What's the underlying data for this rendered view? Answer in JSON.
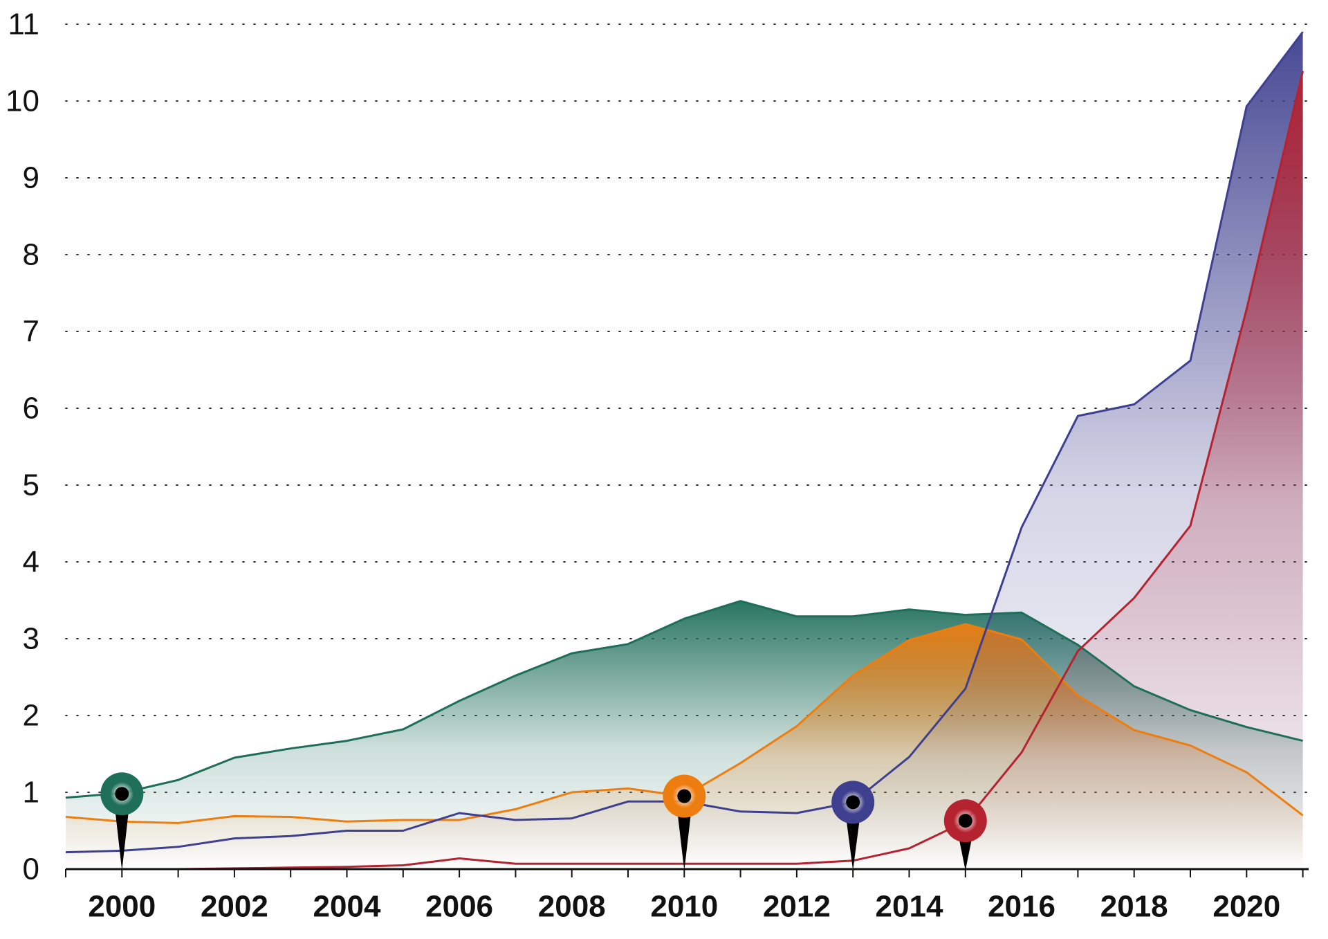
{
  "chart_data": {
    "type": "area",
    "title": "",
    "xlabel": "",
    "ylabel": "",
    "xlim": [
      1999,
      2021
    ],
    "ylim": [
      0,
      11
    ],
    "grid": "horizontal-dotted",
    "legend": "none",
    "x": [
      1999,
      2000,
      2001,
      2002,
      2003,
      2004,
      2005,
      2006,
      2007,
      2008,
      2009,
      2010,
      2011,
      2012,
      2013,
      2014,
      2015,
      2016,
      2017,
      2018,
      2019,
      2020,
      2021
    ],
    "y_ticks": [
      0,
      1,
      2,
      3,
      4,
      5,
      6,
      7,
      8,
      9,
      10,
      11
    ],
    "x_tick_labels": [
      2000,
      2002,
      2004,
      2006,
      2008,
      2010,
      2012,
      2014,
      2016,
      2018,
      2020
    ],
    "series": [
      {
        "color": "#1e6e5a",
        "values": [
          0.93,
          0.99,
          1.16,
          1.45,
          1.57,
          1.67,
          1.82,
          2.19,
          2.52,
          2.81,
          2.93,
          3.26,
          3.49,
          3.29,
          3.29,
          3.38,
          3.31,
          3.34,
          2.92,
          2.38,
          2.07,
          1.85,
          1.67
        ],
        "marker": {
          "x": 2000,
          "y": 0.98
        }
      },
      {
        "color": "#ee7d10",
        "values": [
          0.68,
          0.62,
          0.6,
          0.69,
          0.68,
          0.62,
          0.64,
          0.64,
          0.78,
          1.0,
          1.05,
          0.95,
          1.38,
          1.86,
          2.52,
          2.98,
          3.19,
          2.99,
          2.26,
          1.81,
          1.61,
          1.26,
          0.7
        ],
        "marker": {
          "x": 2010,
          "y": 0.95
        }
      },
      {
        "color": "#3e3f8e",
        "values": [
          0.22,
          0.24,
          0.29,
          0.4,
          0.43,
          0.5,
          0.5,
          0.73,
          0.64,
          0.66,
          0.88,
          0.88,
          0.75,
          0.73,
          0.87,
          1.46,
          2.35,
          4.45,
          5.9,
          6.05,
          6.62,
          9.93,
          10.9
        ],
        "marker": {
          "x": 2013,
          "y": 0.87
        }
      },
      {
        "color": "#b52230",
        "values": [
          0.0,
          0.0,
          0.0,
          0.01,
          0.02,
          0.03,
          0.05,
          0.14,
          0.07,
          0.07,
          0.07,
          0.07,
          0.07,
          0.07,
          0.11,
          0.27,
          0.62,
          1.52,
          2.84,
          3.53,
          4.47,
          7.29,
          10.39
        ],
        "marker": {
          "x": 2015,
          "y": 0.63
        }
      }
    ]
  }
}
